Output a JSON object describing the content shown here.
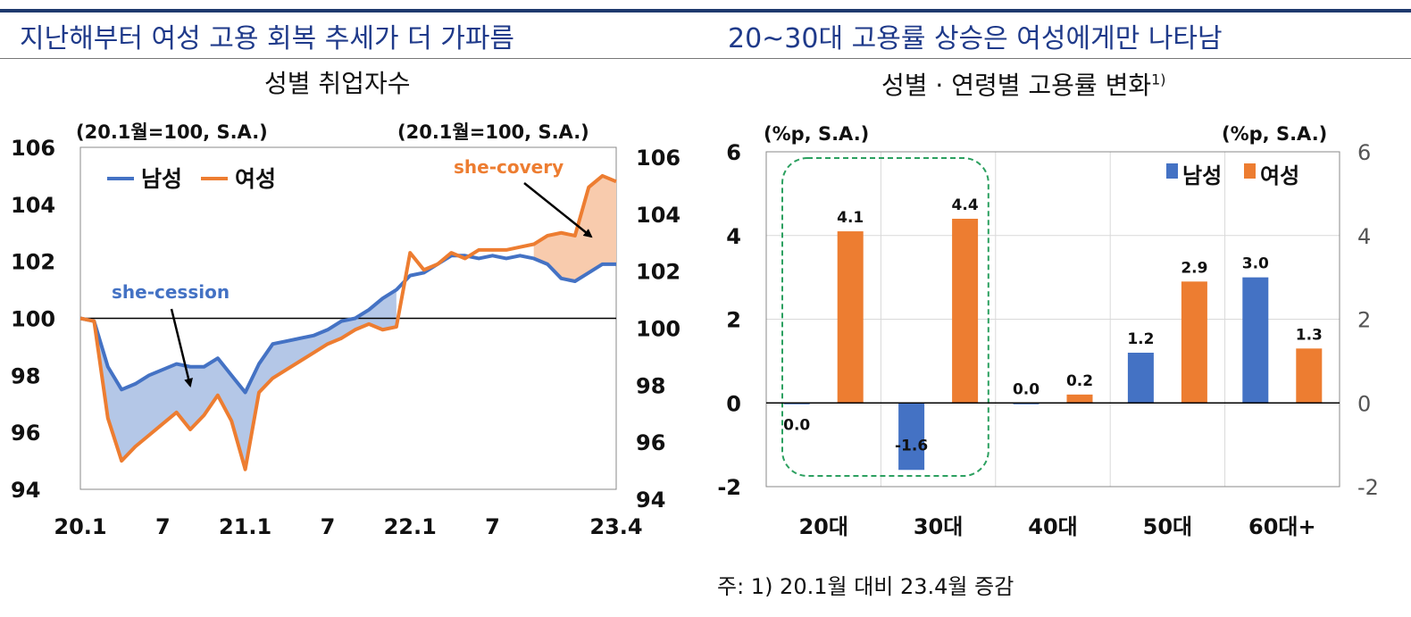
{
  "headlines": {
    "left": "지난해부터 여성 고용 회복 추세가 더 가파름",
    "right": "20~30대 고용률 상승은 여성에게만 나타남"
  },
  "colors": {
    "male": "#4472c4",
    "female": "#ed7d31",
    "headline": "#1f3a8a",
    "fill_gap_male": "#b4c7e7",
    "fill_gap_female": "#f8cbad",
    "highlight": "#2ca060"
  },
  "footnote": "주: 1) 20.1월 대비 23.4월 증감",
  "chart_data": [
    {
      "type": "line",
      "title": "성별 취업자수",
      "unit_left": "(20.1월=100, S.A.)",
      "unit_right": "(20.1월=100, S.A.)",
      "ylim": [
        94,
        106
      ],
      "yticks": [
        "94",
        "96",
        "98",
        "100",
        "102",
        "104",
        "106"
      ],
      "xticks": [
        "20.1",
        "7",
        "21.1",
        "7",
        "22.1",
        "7",
        "23.4"
      ],
      "xtick_index": [
        0,
        6,
        12,
        18,
        24,
        30,
        39
      ],
      "reference_line": 100,
      "legend": [
        "남성",
        "여성"
      ],
      "legend_position": "top-left",
      "annotations": [
        "she-cession",
        "she-covery"
      ],
      "series": [
        {
          "name": "남성",
          "values": [
            100.0,
            99.9,
            98.3,
            97.5,
            97.7,
            98.0,
            98.2,
            98.4,
            98.3,
            98.3,
            98.6,
            98.0,
            97.4,
            98.4,
            99.1,
            99.2,
            99.3,
            99.4,
            99.6,
            99.9,
            100.0,
            100.3,
            100.7,
            101.0,
            101.5,
            101.6,
            101.9,
            102.2,
            102.2,
            102.1,
            102.2,
            102.1,
            102.2,
            102.1,
            101.9,
            101.4,
            101.3,
            101.6,
            101.9,
            101.9
          ]
        },
        {
          "name": "여성",
          "values": [
            100.0,
            99.9,
            96.5,
            95.0,
            95.5,
            95.9,
            96.3,
            96.7,
            96.1,
            96.6,
            97.3,
            96.4,
            94.7,
            97.4,
            97.9,
            98.2,
            98.5,
            98.8,
            99.1,
            99.3,
            99.6,
            99.8,
            99.6,
            99.7,
            102.3,
            101.7,
            101.9,
            102.3,
            102.1,
            102.4,
            102.4,
            102.4,
            102.5,
            102.6,
            102.9,
            103.0,
            102.9,
            104.6,
            105.0,
            104.8
          ]
        }
      ]
    },
    {
      "type": "bar",
      "title": "성별 · 연령별 고용률 변화",
      "title_superscript": "1)",
      "unit_left": "(%p, S.A.)",
      "unit_right": "(%p, S.A.)",
      "categories": [
        "20대",
        "30대",
        "40대",
        "50대",
        "60대+"
      ],
      "ylim": [
        -2,
        6
      ],
      "yticks": [
        "-2",
        "0",
        "2",
        "4",
        "6"
      ],
      "legend": [
        "남성",
        "여성"
      ],
      "legend_position": "top-right",
      "highlighted_categories": [
        "20대",
        "30대"
      ],
      "series": [
        {
          "name": "남성",
          "values": [
            0.0,
            -1.6,
            0.0,
            1.2,
            3.0
          ],
          "labels": [
            "0.0",
            "-1.6",
            "0.0",
            "1.2",
            "3.0"
          ]
        },
        {
          "name": "여성",
          "values": [
            4.1,
            4.4,
            0.2,
            2.9,
            1.3
          ],
          "labels": [
            "4.1",
            "4.4",
            "0.2",
            "2.9",
            "1.3"
          ]
        }
      ]
    }
  ]
}
